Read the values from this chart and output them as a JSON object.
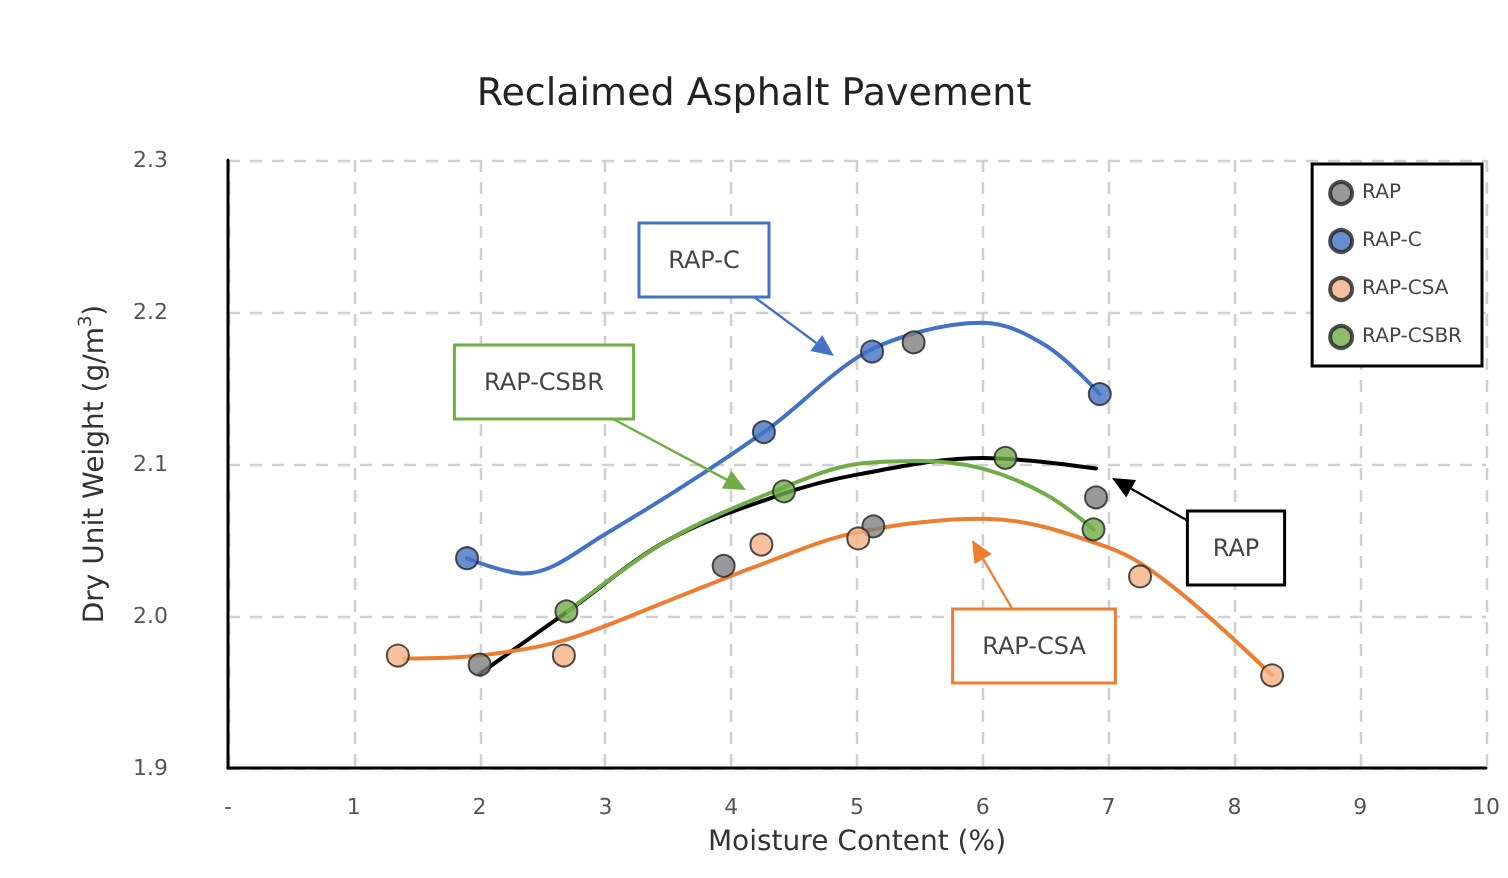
{
  "chart_data": {
    "type": "scatter",
    "title": "Reclaimed Asphalt Pavement",
    "xlabel": "Moisture Content (%)",
    "ylabel": "Dry Unit Weight (g/m$^{3}$)",
    "xlim": [
      0,
      10
    ],
    "xticks": [
      {
        "value": 0,
        "label": "-"
      },
      1,
      2,
      3,
      4,
      5,
      6,
      7,
      8,
      9,
      10
    ],
    "ylim": [
      1.9,
      2.3
    ],
    "yticks": [
      1.9,
      {
        "value": 2.0,
        "label": "2.0"
      },
      2.1,
      2.2,
      2.3
    ],
    "grid": true,
    "legend": "top right",
    "marker": "circle",
    "series": [
      {
        "name": "RAP",
        "color": "#7f7f7f",
        "x": [
          2.0,
          3.94,
          5.13,
          5.45,
          6.9
        ],
        "values": [
          1.968,
          2.033,
          2.059,
          2.18,
          2.078
        ]
      },
      {
        "name": "RAP-C",
        "color": "#4472c4",
        "x": [
          1.9,
          4.26,
          5.12,
          6.93
        ],
        "values": [
          2.038,
          2.121,
          2.174,
          2.146
        ]
      },
      {
        "name": "RAP-CSA",
        "color": "#f4b183",
        "x": [
          1.35,
          2.67,
          4.24,
          5.01,
          7.25,
          8.3
        ],
        "values": [
          1.974,
          1.974,
          2.047,
          2.051,
          2.026,
          1.961
        ]
      },
      {
        "name": "RAP-CSBR",
        "color": "#70ad47",
        "x": [
          2.69,
          4.42,
          6.18,
          6.88
        ],
        "values": [
          2.003,
          2.082,
          2.104,
          2.057
        ]
      },
      {
        "type": "line",
        "marker": "none",
        "color": "#000000",
        "x": [
          2.0,
          2.7,
          3.5,
          4.4,
          5.0,
          6.0,
          6.9
        ],
        "values": [
          1.962,
          2.003,
          2.05,
          2.08,
          2.093,
          2.104,
          2.097
        ]
      },
      {
        "type": "line",
        "marker": "none",
        "color": "#4472c4",
        "x": [
          1.9,
          2.35,
          3.0,
          4.26,
          5.0,
          5.5,
          6.0,
          6.5,
          6.93
        ],
        "values": [
          2.038,
          2.028,
          2.054,
          2.121,
          2.17,
          2.187,
          2.193,
          2.178,
          2.146
        ]
      },
      {
        "type": "line",
        "marker": "none",
        "color": "#ed7d31",
        "x": [
          1.4,
          2.0,
          2.67,
          3.5,
          4.24,
          5.0,
          6.0,
          7.0,
          7.5,
          8.3
        ],
        "values": [
          1.972,
          1.974,
          1.984,
          2.01,
          2.034,
          2.055,
          2.064,
          2.045,
          2.02,
          1.961
        ]
      },
      {
        "type": "line",
        "marker": "none",
        "color": "#70ad47",
        "x": [
          2.7,
          3.5,
          4.4,
          5.0,
          5.5,
          6.0,
          6.5,
          6.88
        ],
        "values": [
          2.003,
          2.05,
          2.084,
          2.1,
          2.102,
          2.097,
          2.08,
          2.057
        ]
      }
    ],
    "annotations": [
      "RAP-C",
      "RAP-CSBR",
      "RAP",
      "RAP-CSA"
    ]
  }
}
